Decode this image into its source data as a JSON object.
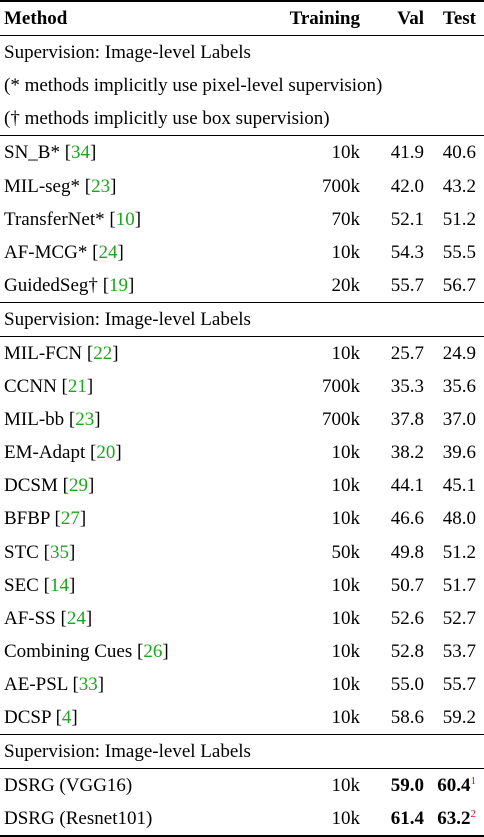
{
  "header": {
    "method": "Method",
    "training": "Training",
    "val": "Val",
    "test": "Test"
  },
  "sections": [
    {
      "title": "Supervision: Image-level Labels",
      "notes": [
        "(* methods implicitly use pixel-level supervision)",
        "(† methods implicitly use box supervision)"
      ],
      "rows": [
        {
          "name": "SN_B*",
          "cite": "34",
          "training": "10k",
          "val": "41.9",
          "test": "40.6"
        },
        {
          "name": "MIL-seg*",
          "cite": "23",
          "training": "700k",
          "val": "42.0",
          "test": "43.2"
        },
        {
          "name": "TransferNet*",
          "cite": "10",
          "training": "70k",
          "val": "52.1",
          "test": "51.2"
        },
        {
          "name": "AF-MCG*",
          "cite": "24",
          "training": "10k",
          "val": "54.3",
          "test": "55.5"
        },
        {
          "name": "GuidedSeg†",
          "cite": "19",
          "training": "20k",
          "val": "55.7",
          "test": "56.7"
        }
      ]
    },
    {
      "title": "Supervision: Image-level Labels",
      "notes": [],
      "rows": [
        {
          "name": "MIL-FCN",
          "cite": "22",
          "training": "10k",
          "val": "25.7",
          "test": "24.9"
        },
        {
          "name": "CCNN",
          "cite": "21",
          "training": "700k",
          "val": "35.3",
          "test": "35.6"
        },
        {
          "name": "MIL-bb",
          "cite": "23",
          "training": "700k",
          "val": "37.8",
          "test": "37.0"
        },
        {
          "name": "EM-Adapt",
          "cite": "20",
          "training": "10k",
          "val": "38.2",
          "test": "39.6"
        },
        {
          "name": "DCSM",
          "cite": "29",
          "training": "10k",
          "val": "44.1",
          "test": "45.1"
        },
        {
          "name": "BFBP",
          "cite": "27",
          "training": "10k",
          "val": "46.6",
          "test": "48.0"
        },
        {
          "name": "STC",
          "cite": "35",
          "training": "50k",
          "val": "49.8",
          "test": "51.2"
        },
        {
          "name": "SEC",
          "cite": "14",
          "training": "10k",
          "val": "50.7",
          "test": "51.7"
        },
        {
          "name": "AF-SS",
          "cite": "24",
          "training": "10k",
          "val": "52.6",
          "test": "52.7"
        },
        {
          "name": "Combining Cues",
          "cite": "26",
          "training": "10k",
          "val": "52.8",
          "test": "53.7"
        },
        {
          "name": "AE-PSL",
          "cite": "33",
          "training": "10k",
          "val": "55.0",
          "test": "55.7"
        },
        {
          "name": "DCSP",
          "cite": "4",
          "training": "10k",
          "val": "58.6",
          "test": "59.2"
        }
      ]
    },
    {
      "title": "Supervision: Image-level Labels",
      "notes": [],
      "rows": [
        {
          "name": "DSRG (VGG16)",
          "cite": "",
          "training": "10k",
          "val": "59.0",
          "test": "60.4",
          "test_sup": "1",
          "bold": true
        },
        {
          "name": "DSRG (Resnet101)",
          "cite": "",
          "training": "10k",
          "val": "61.4",
          "test": "63.2",
          "test_sup": "2",
          "bold": true
        }
      ]
    }
  ],
  "colors": {
    "citation": "#1aa81a",
    "footnote_marker": "#e01010"
  }
}
